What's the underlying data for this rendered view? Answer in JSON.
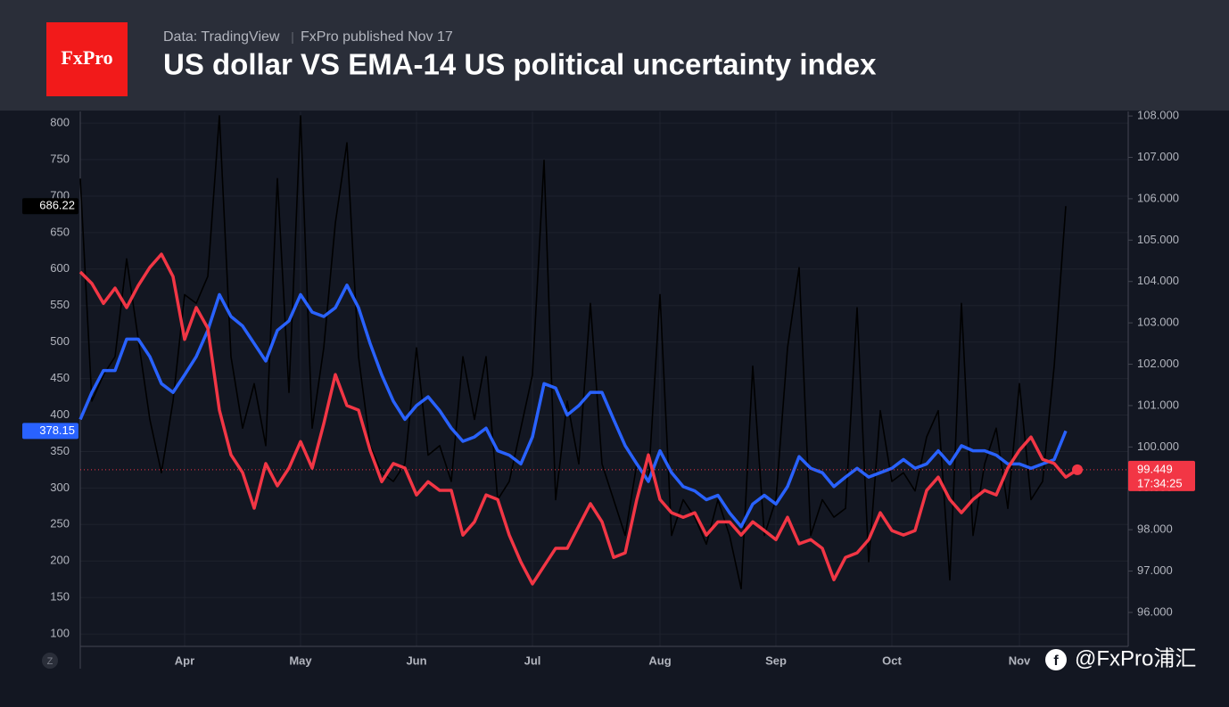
{
  "chart_data": {
    "type": "line",
    "logo": "FxPro",
    "source": "Data: TradingView",
    "publisher": "FxPro published Nov 17",
    "title": "US dollar VS EMA-14 US political uncertainty index",
    "watermark": "@FxPro浦汇",
    "scale_button": "Z",
    "countdown": "17:34:25",
    "categories": [
      null,
      null,
      null,
      null,
      null,
      null,
      null,
      null,
      null,
      "Apr",
      null,
      null,
      null,
      null,
      null,
      null,
      null,
      null,
      null,
      "May",
      null,
      null,
      null,
      null,
      null,
      null,
      null,
      null,
      null,
      "Jun",
      null,
      null,
      null,
      null,
      null,
      null,
      null,
      null,
      null,
      "Jul",
      null,
      null,
      null,
      null,
      null,
      null,
      null,
      null,
      null,
      null,
      "Aug",
      null,
      null,
      null,
      null,
      null,
      null,
      null,
      null,
      null,
      "Sep",
      null,
      null,
      null,
      null,
      null,
      null,
      null,
      null,
      null,
      "Oct",
      null,
      null,
      null,
      null,
      null,
      null,
      null,
      null,
      null,
      null,
      "Nov",
      null,
      null,
      null,
      null,
      null
    ],
    "ylim": [
      83,
      816
    ],
    "yticks": [
      100,
      150,
      200,
      250,
      300,
      350,
      400,
      450,
      500,
      550,
      600,
      650,
      700,
      750,
      800
    ],
    "y2lim": [
      95.18,
      108.11
    ],
    "y2ticks": [
      {
        "value": 96,
        "label": "96.000"
      },
      {
        "value": 97,
        "label": "97.000"
      },
      {
        "value": 98,
        "label": "98.000"
      },
      {
        "value": 99,
        "label": "99.000"
      },
      {
        "value": 100,
        "label": "100.000"
      },
      {
        "value": 101,
        "label": "101.000"
      },
      {
        "value": 102,
        "label": "102.000"
      },
      {
        "value": 103,
        "label": "103.000"
      },
      {
        "value": 104,
        "label": "104.000"
      },
      {
        "value": 105,
        "label": "105.000"
      },
      {
        "value": 106,
        "label": "106.000"
      },
      {
        "value": 107,
        "label": "107.000"
      },
      {
        "value": 108,
        "label": "108.000"
      }
    ],
    "grid": true,
    "series": [
      {
        "color": "#000000",
        "axis": "y",
        "values": [
          724,
          419,
          455,
          480,
          614,
          504,
          394,
          321,
          419,
          565,
          553,
          590,
          810,
          480,
          382,
          443,
          358,
          724,
          431,
          810,
          382,
          492,
          663,
          773,
          480,
          358,
          321,
          309,
          333,
          492,
          345,
          358,
          309,
          480,
          394,
          480,
          284,
          309,
          382,
          455,
          749,
          284,
          419,
          333,
          553,
          333,
          284,
          235,
          333,
          309,
          565,
          235,
          284,
          260,
          223,
          284,
          235,
          162,
          467,
          235,
          284,
          492,
          602,
          235,
          284,
          260,
          272,
          547,
          199,
          406,
          309,
          321,
          296,
          370,
          406,
          174,
          553,
          235,
          333,
          382,
          272,
          443,
          284,
          309,
          467,
          686.22,
          null
        ]
      },
      {
        "color": "#2962ff",
        "axis": "y",
        "values": [
          394,
          431,
          461,
          461,
          504,
          504,
          480,
          443,
          431,
          455,
          480,
          516,
          565,
          535,
          522,
          498,
          474,
          516,
          529,
          565,
          541,
          535,
          547,
          578,
          547,
          498,
          455,
          419,
          394,
          413,
          425,
          406,
          382,
          364,
          370,
          382,
          351,
          345,
          333,
          370,
          443,
          437,
          400,
          413,
          431,
          431,
          394,
          358,
          333,
          309,
          351,
          321,
          302,
          296,
          284,
          290,
          266,
          247,
          278,
          290,
          278,
          302,
          343,
          327,
          321,
          302,
          315,
          327,
          315,
          321,
          327,
          339,
          327,
          333,
          351,
          333,
          358,
          351,
          351,
          345,
          333,
          333,
          327,
          333,
          339,
          378.15,
          null
        ]
      },
      {
        "color": "#f23645",
        "axis": "y2",
        "values": [
          104.23,
          103.95,
          103.47,
          103.84,
          103.37,
          103.9,
          104.34,
          104.66,
          104.12,
          102.6,
          103.37,
          102.87,
          100.89,
          99.81,
          99.38,
          98.52,
          99.6,
          99.06,
          99.49,
          100.13,
          99.49,
          100.56,
          101.75,
          101.0,
          100.89,
          99.92,
          99.16,
          99.6,
          99.49,
          98.84,
          99.16,
          98.95,
          98.95,
          97.87,
          98.19,
          98.84,
          98.73,
          97.87,
          97.22,
          96.69,
          97.12,
          97.55,
          97.55,
          98.09,
          98.63,
          98.19,
          97.33,
          97.44,
          98.73,
          99.81,
          98.73,
          98.41,
          98.3,
          98.41,
          97.87,
          98.19,
          98.19,
          97.87,
          98.19,
          97.98,
          97.76,
          98.3,
          97.66,
          97.76,
          97.55,
          96.79,
          97.33,
          97.44,
          97.76,
          98.41,
          97.98,
          97.87,
          97.98,
          98.95,
          99.27,
          98.73,
          98.41,
          98.73,
          98.95,
          98.84,
          99.49,
          99.92,
          100.24,
          99.7,
          99.6,
          99.27,
          99.449
        ]
      }
    ]
  }
}
